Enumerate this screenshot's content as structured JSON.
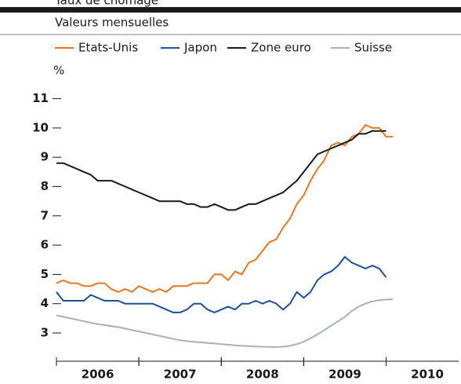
{
  "chart_data": {
    "type": "line",
    "title": "Taux de chômage",
    "subtitle": "Valeurs mensuelles",
    "ylabel": "%",
    "x": [
      2006,
      2006.083,
      2006.167,
      2006.25,
      2006.333,
      2006.417,
      2006.5,
      2006.583,
      2006.667,
      2006.75,
      2006.833,
      2006.917,
      2007,
      2007.083,
      2007.167,
      2007.25,
      2007.333,
      2007.417,
      2007.5,
      2007.583,
      2007.667,
      2007.75,
      2007.833,
      2007.917,
      2008,
      2008.083,
      2008.167,
      2008.25,
      2008.333,
      2008.417,
      2008.5,
      2008.583,
      2008.667,
      2008.75,
      2008.833,
      2008.917,
      2009,
      2009.083,
      2009.167,
      2009.25,
      2009.333,
      2009.417,
      2009.5,
      2009.583,
      2009.667,
      2009.75,
      2009.833,
      2009.917,
      2010,
      2010.083
    ],
    "series": [
      {
        "name": "Etats-Unis",
        "color": "#e87722",
        "values": [
          4.7,
          4.8,
          4.7,
          4.7,
          4.6,
          4.6,
          4.7,
          4.7,
          4.5,
          4.4,
          4.5,
          4.4,
          4.6,
          4.5,
          4.4,
          4.5,
          4.4,
          4.6,
          4.6,
          4.6,
          4.7,
          4.7,
          4.7,
          5.0,
          5.0,
          4.8,
          5.1,
          5.0,
          5.4,
          5.5,
          5.8,
          6.1,
          6.2,
          6.6,
          6.9,
          7.4,
          7.7,
          8.2,
          8.6,
          8.9,
          9.4,
          9.5,
          9.4,
          9.7,
          9.8,
          10.1,
          10.0,
          10.0,
          9.7,
          9.7
        ]
      },
      {
        "name": "Japon",
        "color": "#1f4e9c",
        "values": [
          4.4,
          4.1,
          4.1,
          4.1,
          4.1,
          4.3,
          4.2,
          4.1,
          4.1,
          4.1,
          4.0,
          4.0,
          4.0,
          4.0,
          4.0,
          3.9,
          3.8,
          3.7,
          3.7,
          3.8,
          4.0,
          4.0,
          3.8,
          3.7,
          3.8,
          3.9,
          3.8,
          4.0,
          4.0,
          4.1,
          4.0,
          4.1,
          4.0,
          3.8,
          4.0,
          4.4,
          4.2,
          4.4,
          4.8,
          5.0,
          5.1,
          5.3,
          5.6,
          5.4,
          5.3,
          5.2,
          5.3,
          5.2,
          4.9,
          null
        ]
      },
      {
        "name": "Zone euro",
        "color": "#1a1a1a",
        "values": [
          8.8,
          8.8,
          8.7,
          8.6,
          8.5,
          8.4,
          8.2,
          8.2,
          8.2,
          8.1,
          8.0,
          7.9,
          7.8,
          7.7,
          7.6,
          7.5,
          7.5,
          7.5,
          7.5,
          7.4,
          7.4,
          7.3,
          7.3,
          7.4,
          7.3,
          7.2,
          7.2,
          7.3,
          7.4,
          7.4,
          7.5,
          7.6,
          7.7,
          7.8,
          8.0,
          8.2,
          8.5,
          8.8,
          9.1,
          9.2,
          9.3,
          9.4,
          9.5,
          9.6,
          9.8,
          9.8,
          9.9,
          9.9,
          9.9,
          null
        ]
      },
      {
        "name": "Suisse",
        "color": "#a8b1b8",
        "values": [
          3.6,
          3.55,
          3.5,
          3.45,
          3.4,
          3.35,
          3.3,
          3.27,
          3.23,
          3.2,
          3.15,
          3.1,
          3.05,
          3.0,
          2.95,
          2.9,
          2.85,
          2.8,
          2.75,
          2.72,
          2.7,
          2.68,
          2.66,
          2.64,
          2.62,
          2.6,
          2.58,
          2.56,
          2.55,
          2.54,
          2.53,
          2.52,
          2.52,
          2.53,
          2.56,
          2.62,
          2.7,
          2.82,
          2.95,
          3.1,
          3.25,
          3.4,
          3.55,
          3.75,
          3.9,
          4.0,
          4.08,
          4.12,
          4.14,
          4.15
        ]
      }
    ],
    "xlim": [
      2006,
      2010.88
    ],
    "xticks": [
      {
        "value": 2006.5,
        "label": "2006"
      },
      {
        "value": 2007.5,
        "label": "2007"
      },
      {
        "value": 2008.5,
        "label": "2008"
      },
      {
        "value": 2009.5,
        "label": "2009"
      },
      {
        "value": 2010.5,
        "label": "2010"
      }
    ],
    "ylim": [
      2,
      11.5
    ],
    "yticks": [
      3,
      4,
      5,
      6,
      7,
      8,
      9,
      10,
      11
    ]
  }
}
